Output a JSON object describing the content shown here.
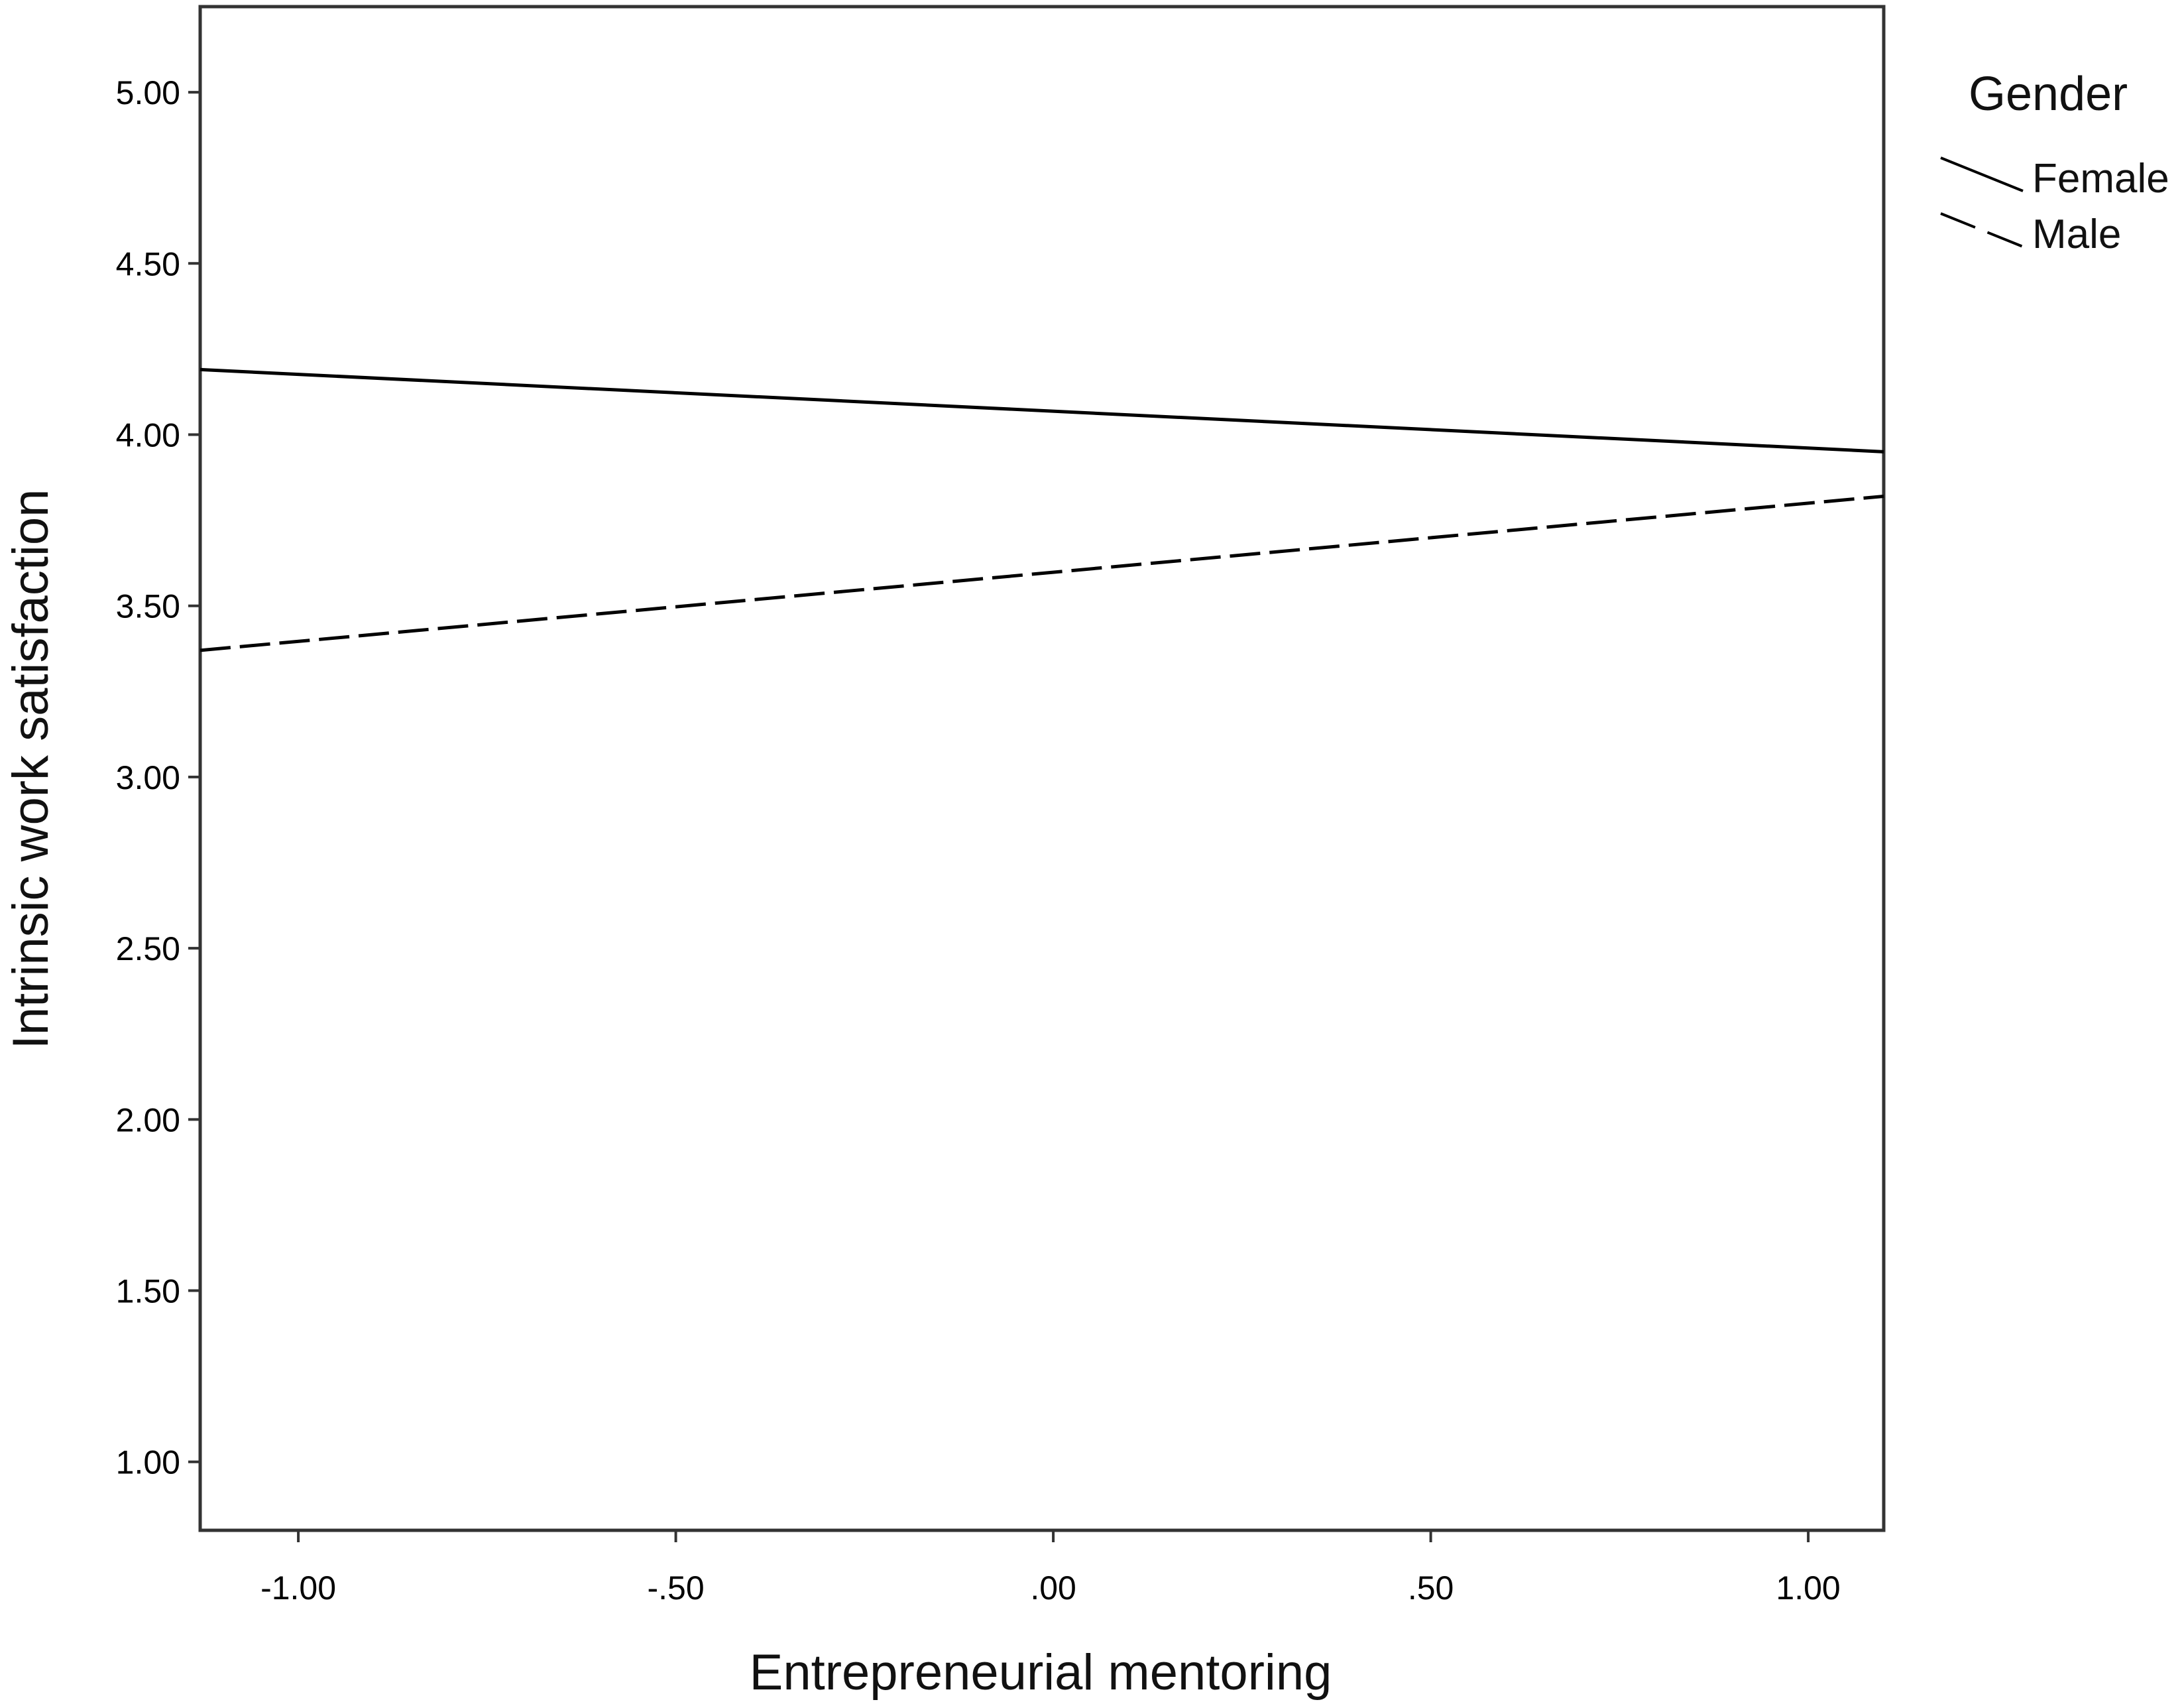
{
  "chart_data": {
    "type": "line",
    "xlabel": "Entrepreneurial mentoring",
    "ylabel": "Intrinsic work satisfaction",
    "xlim": [
      -1.13,
      1.1
    ],
    "ylim": [
      0.8,
      5.25
    ],
    "x_ticks": [
      -1.0,
      -0.5,
      0.0,
      0.5,
      1.0
    ],
    "x_tick_labels": [
      "-1.00",
      "-.50",
      ".00",
      ".50",
      "1.00"
    ],
    "y_ticks": [
      1.0,
      1.5,
      2.0,
      2.5,
      3.0,
      3.5,
      4.0,
      4.5,
      5.0
    ],
    "y_tick_labels": [
      "1.00",
      "1.50",
      "2.00",
      "2.50",
      "3.00",
      "3.50",
      "4.00",
      "4.50",
      "5.00"
    ],
    "grid": false,
    "legend": {
      "title": "Gender",
      "placement": "top-right, outside plot"
    },
    "series": [
      {
        "name": "Female",
        "style": "solid",
        "x": [
          -1.13,
          1.1
        ],
        "y": [
          4.19,
          3.95
        ]
      },
      {
        "name": "Male",
        "style": "dashed",
        "x": [
          -1.13,
          1.1
        ],
        "y": [
          3.37,
          3.82
        ]
      }
    ],
    "colors": {
      "line": "#000000",
      "frame": "#333333",
      "background": "#ffffff"
    }
  }
}
